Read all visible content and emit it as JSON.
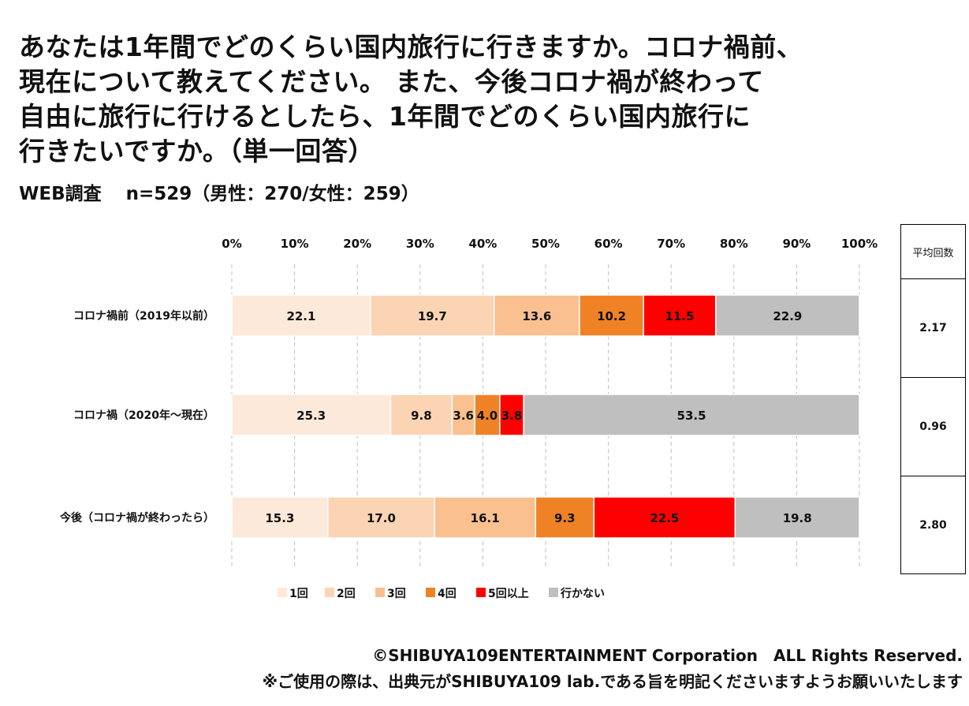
{
  "title_lines": [
    "あなたは1年間でどのくらい国内旅行に行きますか。コロナ禍前、",
    "現在について教えてください。 また、今後コロナ禍が終わって",
    "自由に旅行に行けるとしたら、1年間でどのくらい国内旅行に",
    "行きたいですか。（単一回答）"
  ],
  "survey_note": "WEB調査　 n=529（男性：270/女性：259）",
  "average_table": {
    "header": "平均回数",
    "values": [
      "2.17",
      "0.96",
      "2.80"
    ]
  },
  "footer": {
    "copyright": "©SHIBUYA109ENTERTAINMENT Corporation　ALL Rights Reserved.",
    "usage_note": "※ご使用の際は、出典元がSHIBUYA109 lab.である旨を明記くださいますようお願いいたします"
  },
  "chart_data": {
    "type": "bar",
    "orientation": "horizontal",
    "stacked": true,
    "percent": true,
    "categories": [
      "コロナ禍前（2019年以前）",
      "コロナ禍（2020年～現在）",
      "今後（コロナ禍が終わったら）"
    ],
    "x_ticks": [
      "0%",
      "10%",
      "20%",
      "30%",
      "40%",
      "50%",
      "60%",
      "70%",
      "80%",
      "90%",
      "100%"
    ],
    "xlim": [
      0,
      100
    ],
    "grid": "vertical-dashed",
    "legend_position": "bottom",
    "series": [
      {
        "name": "1回",
        "color": "#fde9d9",
        "values": [
          22.1,
          25.3,
          15.3
        ],
        "labels": [
          "22.1",
          "25.3",
          "15.3"
        ]
      },
      {
        "name": "2回",
        "color": "#fbd4b4",
        "values": [
          19.7,
          9.8,
          17.0
        ],
        "labels": [
          "19.7",
          "9.8",
          "17.0"
        ]
      },
      {
        "name": "3回",
        "color": "#fac090",
        "values": [
          13.6,
          3.6,
          16.1
        ],
        "labels": [
          "13.6",
          "3.6",
          "16.1"
        ]
      },
      {
        "name": "4回",
        "color": "#f08226",
        "values": [
          10.2,
          4.0,
          9.3
        ],
        "labels": [
          "10.2",
          "4.0",
          "9.3"
        ]
      },
      {
        "name": "5回以上",
        "color": "#ff0000",
        "values": [
          11.5,
          3.8,
          22.5
        ],
        "labels": [
          "11.5",
          "3.8",
          "22.5"
        ]
      },
      {
        "name": "行かない",
        "color": "#bfbfbf",
        "values": [
          22.9,
          53.5,
          19.8
        ],
        "labels": [
          "22.9",
          "53.5",
          "19.8"
        ]
      }
    ]
  }
}
